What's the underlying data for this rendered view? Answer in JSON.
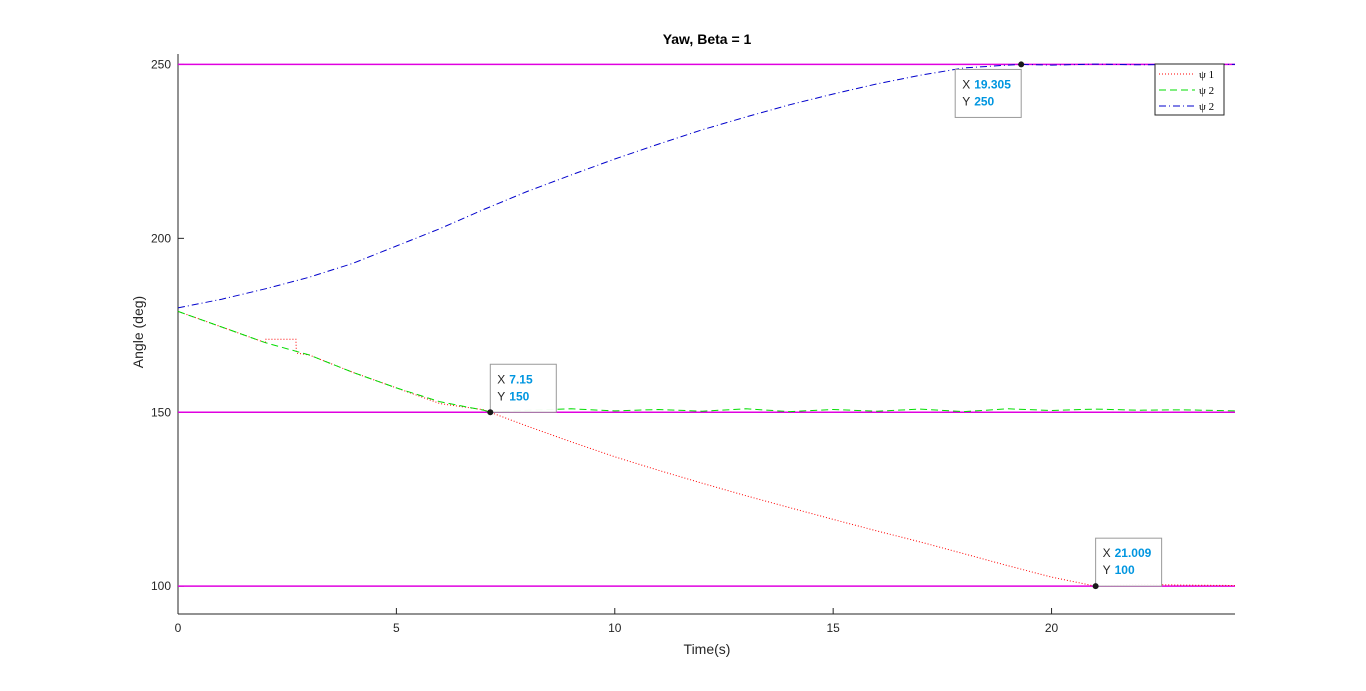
{
  "chart_data": {
    "type": "line",
    "title": "Yaw, Beta = 1",
    "xlabel": "Time(s)",
    "ylabel": "Angle (deg)",
    "xlim": [
      0,
      24.2
    ],
    "ylim": [
      92,
      253
    ],
    "xticks": [
      0,
      5,
      10,
      15,
      20
    ],
    "xtick_labels": [
      "0",
      "5",
      "10",
      "15",
      "20"
    ],
    "yticks": [
      100,
      150,
      200,
      250
    ],
    "ytick_labels": [
      "100",
      "150",
      "200",
      "250"
    ],
    "grid": false,
    "legend_position": "top-right",
    "reference_lines": {
      "y": [
        100,
        150,
        250
      ],
      "color": "#e000e0"
    },
    "series": [
      {
        "name": "ψ 1",
        "color": "#ff0000",
        "style": "dotted",
        "x": [
          0,
          1,
          2,
          2.01,
          2.7,
          2.71,
          3,
          4,
          5,
          6,
          7,
          7.15,
          8,
          9,
          10,
          11,
          12,
          13,
          14,
          15,
          16,
          17,
          18,
          19,
          20,
          21.009,
          22,
          23,
          24.2
        ],
        "y": [
          179,
          174.5,
          170,
          171,
          171,
          167,
          166.5,
          161.5,
          157,
          152.5,
          150.7,
          150,
          146,
          141.5,
          137.2,
          133.3,
          129.6,
          126,
          122.6,
          119.2,
          115.9,
          112.7,
          109.3,
          105.9,
          102.6,
          100,
          100.5,
          100.3,
          100.2
        ]
      },
      {
        "name": "ψ 2",
        "color": "#00dd00",
        "style": "dashed",
        "x": [
          0,
          1,
          2,
          3,
          4,
          5,
          6,
          7,
          7.15,
          7.5,
          8,
          9,
          10,
          11,
          12,
          13,
          14,
          15,
          16,
          17,
          18,
          19,
          20,
          21,
          22,
          23,
          24.2
        ],
        "y": [
          179,
          174.5,
          170,
          166.5,
          161.5,
          157,
          153,
          150.6,
          150,
          150.3,
          150.6,
          151,
          150.4,
          150.8,
          150.3,
          151,
          150.2,
          150.8,
          150.3,
          150.9,
          150.2,
          151,
          150.5,
          150.9,
          150.6,
          150.7,
          150.4
        ]
      },
      {
        "name": "ψ 2",
        "color": "#0000cc",
        "style": "dashdot",
        "x": [
          0,
          1,
          2,
          3,
          4,
          5,
          6,
          7,
          8,
          9,
          10,
          11,
          12,
          13,
          14,
          15,
          16,
          17,
          18,
          19,
          19.305,
          20,
          21,
          22,
          23,
          24.2
        ],
        "y": [
          180,
          182.5,
          185.5,
          188.8,
          192.8,
          197.8,
          202.8,
          208.3,
          213.5,
          218.2,
          222.8,
          227.1,
          231.2,
          234.9,
          238.4,
          241.5,
          244.4,
          246.9,
          249,
          249.8,
          250,
          249.8,
          250.1,
          249.9,
          250,
          250
        ]
      }
    ],
    "datatips": [
      {
        "x": 19.305,
        "y": 250,
        "x_label": "X",
        "x_value": "19.305",
        "y_label": "Y",
        "y_value": "250",
        "placement": "below-left"
      },
      {
        "x": 7.15,
        "y": 150,
        "x_label": "X",
        "x_value": "7.15",
        "y_label": "Y",
        "y_value": "150",
        "placement": "above-right"
      },
      {
        "x": 21.009,
        "y": 100,
        "x_label": "X",
        "x_value": "21.009",
        "y_label": "Y",
        "y_value": "100",
        "placement": "above-right"
      }
    ]
  }
}
